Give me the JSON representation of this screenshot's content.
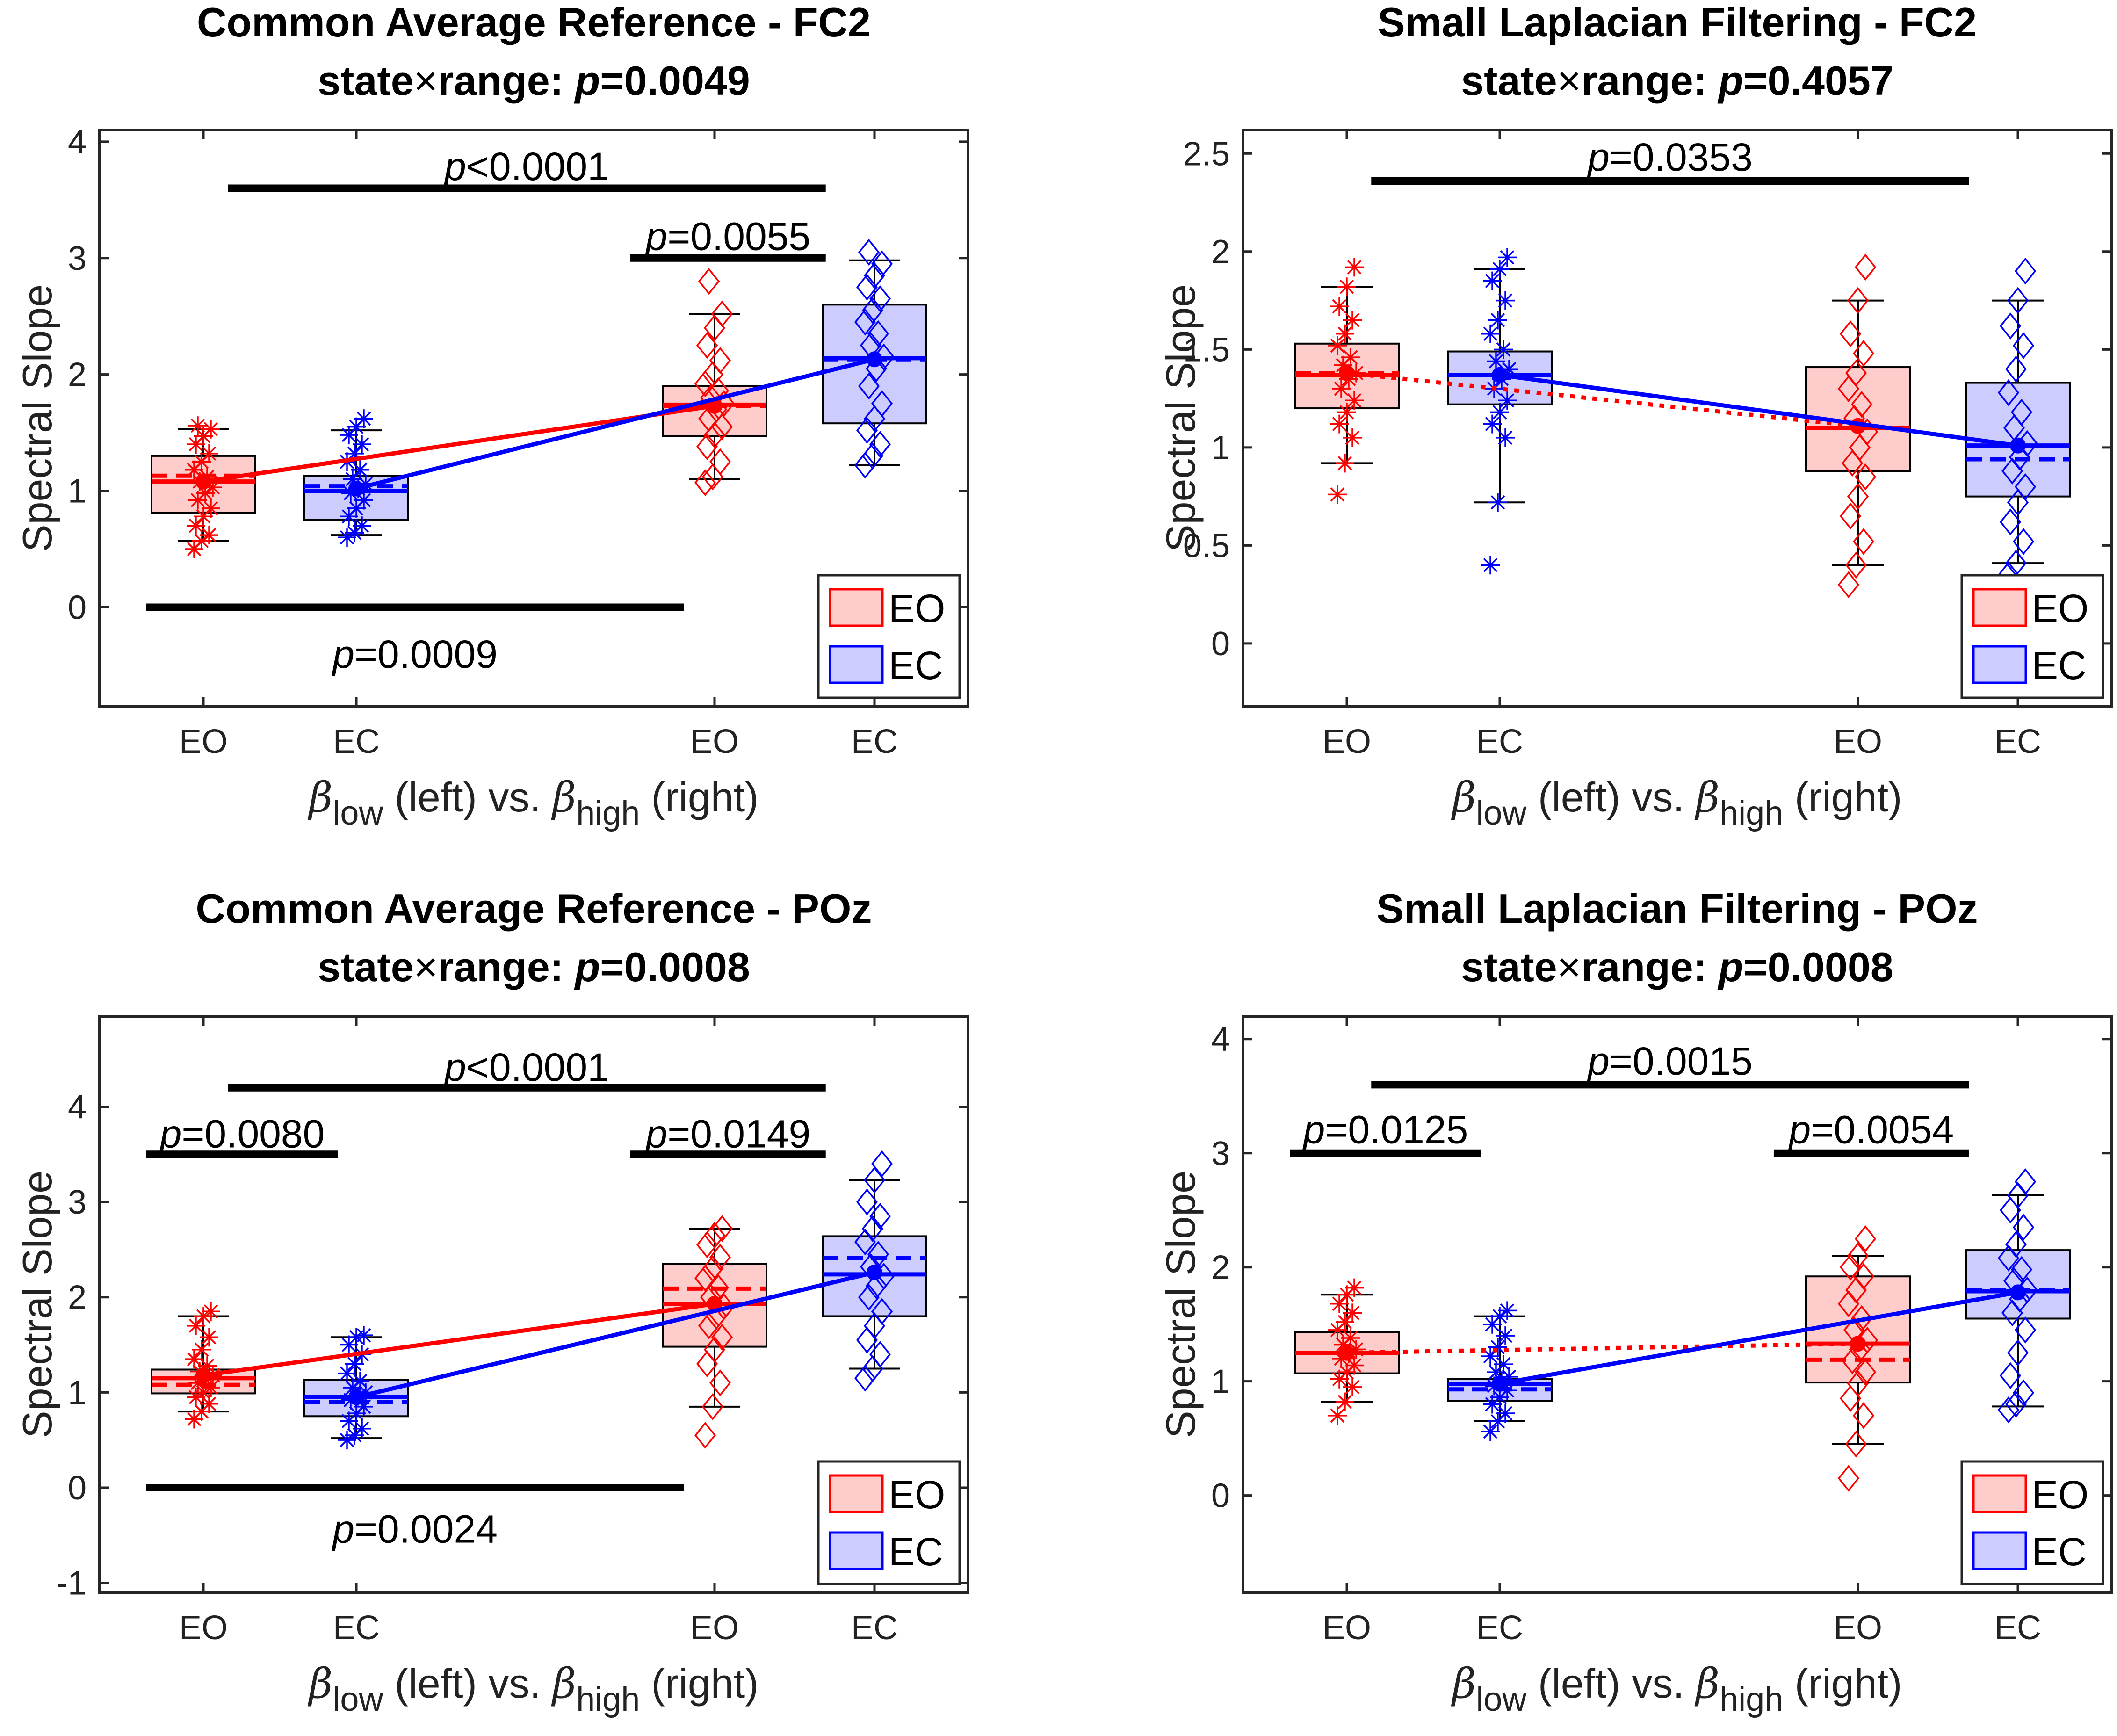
{
  "colors": {
    "EO": "#ff0000",
    "EC": "#0000ff",
    "EO_fill": "#ffcccc",
    "EC_fill": "#ccccff"
  },
  "common": {
    "ylabel": "Spectral Slope",
    "xlabel": {
      "sym1": "β",
      "sub1": "low",
      "mid": " (left) vs. ",
      "sym2": "β",
      "sub2": "high",
      "end": " (right)"
    },
    "categories": [
      "EO",
      "EC",
      "EO",
      "EC"
    ],
    "legend": [
      "EO",
      "EC"
    ]
  },
  "chart_data": [
    {
      "type": "box",
      "title": "Common Average Reference - FC2",
      "subtitle": {
        "prefix": "state",
        "times": "×",
        "mid": "range: ",
        "p": "p",
        "value": "=0.0049"
      },
      "ylim": [
        -0.85,
        4.1
      ],
      "yticks": [
        "0",
        "1",
        "2",
        "3",
        "4"
      ],
      "ytick_values": [
        0,
        1,
        2,
        3,
        4
      ],
      "boxes": [
        {
          "group": "EO",
          "range": "low",
          "q1": 0.81,
          "median": 1.08,
          "q3": 1.3,
          "wlo": 0.57,
          "whi": 1.53,
          "mean": 1.08,
          "trim": 1.13,
          "points": [
            0.5,
            0.57,
            0.62,
            0.7,
            0.78,
            0.85,
            0.92,
            0.98,
            1.03,
            1.08,
            1.12,
            1.18,
            1.25,
            1.32,
            1.4,
            1.47,
            1.53,
            1.56
          ]
        },
        {
          "group": "EC",
          "range": "low",
          "q1": 0.75,
          "median": 1.0,
          "q3": 1.13,
          "wlo": 0.62,
          "whi": 1.52,
          "mean": 1.02,
          "trim": 1.04,
          "points": [
            0.6,
            0.64,
            0.7,
            0.78,
            0.85,
            0.92,
            0.98,
            1.02,
            1.06,
            1.1,
            1.18,
            1.25,
            1.32,
            1.4,
            1.48,
            1.55,
            1.62
          ]
        },
        {
          "group": "EO",
          "range": "high",
          "q1": 1.47,
          "median": 1.74,
          "q3": 1.9,
          "wlo": 1.1,
          "whi": 2.52,
          "mean": 1.73,
          "trim": 1.73,
          "points": [
            1.07,
            1.12,
            1.25,
            1.38,
            1.48,
            1.55,
            1.62,
            1.7,
            1.75,
            1.8,
            1.86,
            1.92,
            2.0,
            2.12,
            2.25,
            2.4,
            2.52,
            2.8
          ]
        },
        {
          "group": "EC",
          "range": "high",
          "q1": 1.58,
          "median": 2.14,
          "q3": 2.6,
          "wlo": 1.22,
          "whi": 2.98,
          "mean": 2.13,
          "trim": 2.13,
          "points": [
            1.22,
            1.3,
            1.4,
            1.52,
            1.62,
            1.75,
            1.9,
            2.05,
            2.15,
            2.25,
            2.35,
            2.45,
            2.55,
            2.65,
            2.75,
            2.85,
            2.95,
            3.05
          ]
        }
      ],
      "trend_lines": [
        {
          "group": "EO",
          "from": 1.08,
          "to": 1.73,
          "style": "solid"
        },
        {
          "group": "EC",
          "from": 1.02,
          "to": 2.13,
          "style": "solid"
        }
      ],
      "annotations": [
        {
          "y": 3.6,
          "x_from": 0.67,
          "x_to": 4.25,
          "label_prefix": "p",
          "label": "<0.0001",
          "label_y": 3.75,
          "position": "above"
        },
        {
          "y": 3.0,
          "x_from": 3.08,
          "x_to": 4.25,
          "label_prefix": "p",
          "label": "=0.0055",
          "label_y": 3.15,
          "position": "above"
        },
        {
          "y": 0.0,
          "x_from": 0.08,
          "x_to": 3.4,
          "label_prefix": "p",
          "label": "=0.0009",
          "label_y": -0.4,
          "position": "below"
        }
      ],
      "legend_placement": "bottom-right"
    },
    {
      "type": "box",
      "title": "Small Laplacian Filtering - FC2",
      "subtitle": {
        "prefix": "state",
        "times": "×",
        "mid": "range: ",
        "p": "p",
        "value": "=0.4057"
      },
      "ylim": [
        -0.32,
        2.62
      ],
      "yticks": [
        "0",
        "0.5",
        "1",
        "1.5",
        "2",
        "2.5"
      ],
      "ytick_values": [
        0,
        0.5,
        1,
        1.5,
        2,
        2.5
      ],
      "boxes": [
        {
          "group": "EO",
          "range": "low",
          "q1": 1.2,
          "median": 1.37,
          "q3": 1.53,
          "wlo": 0.92,
          "whi": 1.82,
          "mean": 1.38,
          "trim": 1.38,
          "points": [
            0.76,
            0.92,
            1.05,
            1.12,
            1.18,
            1.24,
            1.3,
            1.35,
            1.38,
            1.42,
            1.46,
            1.52,
            1.58,
            1.65,
            1.72,
            1.82,
            1.92
          ]
        },
        {
          "group": "EC",
          "range": "low",
          "q1": 1.22,
          "median": 1.37,
          "q3": 1.49,
          "wlo": 0.72,
          "whi": 1.91,
          "mean": 1.37,
          "trim": 1.37,
          "points": [
            0.4,
            0.72,
            1.05,
            1.12,
            1.18,
            1.24,
            1.3,
            1.35,
            1.4,
            1.44,
            1.5,
            1.58,
            1.65,
            1.75,
            1.85,
            1.91,
            1.97
          ]
        },
        {
          "group": "EO",
          "range": "high",
          "q1": 0.88,
          "median": 1.1,
          "q3": 1.41,
          "wlo": 0.4,
          "whi": 1.75,
          "mean": 1.11,
          "trim": 1.1,
          "points": [
            0.3,
            0.4,
            0.52,
            0.65,
            0.75,
            0.85,
            0.92,
            1.0,
            1.08,
            1.15,
            1.22,
            1.3,
            1.38,
            1.48,
            1.58,
            1.75,
            1.92
          ]
        },
        {
          "group": "EC",
          "range": "high",
          "q1": 0.75,
          "median": 1.01,
          "q3": 1.33,
          "wlo": 0.41,
          "whi": 1.75,
          "mean": 1.01,
          "trim": 0.94,
          "points": [
            0.35,
            0.41,
            0.52,
            0.62,
            0.72,
            0.8,
            0.88,
            0.95,
            1.02,
            1.1,
            1.18,
            1.28,
            1.4,
            1.52,
            1.62,
            1.75,
            1.9
          ]
        }
      ],
      "trend_lines": [
        {
          "group": "EO",
          "from": 1.38,
          "to": 1.11,
          "style": "dotted"
        },
        {
          "group": "EC",
          "from": 1.37,
          "to": 1.01,
          "style": "solid"
        }
      ],
      "annotations": [
        {
          "y": 2.36,
          "x_from": 0.67,
          "x_to": 4.25,
          "label_prefix": "p",
          "label": "=0.0353",
          "label_y": 2.46,
          "position": "above"
        }
      ],
      "legend_placement": "bottom-right"
    },
    {
      "type": "box",
      "title": "Common Average Reference - POz",
      "subtitle": {
        "prefix": "state",
        "times": "×",
        "mid": "range: ",
        "p": "p",
        "value": "=0.0008"
      },
      "ylim": [
        -1.1,
        4.95
      ],
      "yticks": [
        "-1",
        "0",
        "1",
        "2",
        "3",
        "4"
      ],
      "ytick_values": [
        -1,
        0,
        1,
        2,
        3,
        4
      ],
      "boxes": [
        {
          "group": "EO",
          "range": "low",
          "q1": 0.99,
          "median": 1.15,
          "q3": 1.24,
          "wlo": 0.8,
          "whi": 1.8,
          "mean": 1.18,
          "trim": 1.08,
          "points": [
            0.72,
            0.8,
            0.88,
            0.95,
            1.0,
            1.05,
            1.1,
            1.14,
            1.18,
            1.22,
            1.28,
            1.35,
            1.45,
            1.58,
            1.7,
            1.8,
            1.85
          ]
        },
        {
          "group": "EC",
          "range": "low",
          "q1": 0.75,
          "median": 0.95,
          "q3": 1.13,
          "wlo": 0.52,
          "whi": 1.58,
          "mean": 0.95,
          "trim": 0.9,
          "points": [
            0.5,
            0.55,
            0.62,
            0.7,
            0.78,
            0.85,
            0.92,
            0.96,
            1.0,
            1.05,
            1.12,
            1.2,
            1.3,
            1.4,
            1.5,
            1.58,
            1.6
          ]
        },
        {
          "group": "EO",
          "range": "high",
          "q1": 1.48,
          "median": 1.93,
          "q3": 2.35,
          "wlo": 0.85,
          "whi": 2.72,
          "mean": 1.93,
          "trim": 2.09,
          "points": [
            0.55,
            0.85,
            1.1,
            1.3,
            1.45,
            1.58,
            1.7,
            1.8,
            1.9,
            2.0,
            2.1,
            2.2,
            2.3,
            2.42,
            2.55,
            2.65,
            2.72
          ]
        },
        {
          "group": "EC",
          "range": "high",
          "q1": 1.8,
          "median": 2.24,
          "q3": 2.64,
          "wlo": 1.25,
          "whi": 3.23,
          "mean": 2.26,
          "trim": 2.41,
          "points": [
            1.15,
            1.25,
            1.4,
            1.55,
            1.7,
            1.85,
            2.0,
            2.12,
            2.22,
            2.32,
            2.45,
            2.58,
            2.72,
            2.85,
            3.0,
            3.23,
            3.4
          ]
        }
      ],
      "trend_lines": [
        {
          "group": "EO",
          "from": 1.18,
          "to": 1.93,
          "style": "solid"
        },
        {
          "group": "EC",
          "from": 0.95,
          "to": 2.26,
          "style": "solid"
        }
      ],
      "annotations": [
        {
          "y": 4.2,
          "x_from": 0.67,
          "x_to": 4.25,
          "label_prefix": "p",
          "label": "<0.0001",
          "label_y": 4.37,
          "position": "above"
        },
        {
          "y": 3.5,
          "x_from": 0.08,
          "x_to": 1.33,
          "label_prefix": "p",
          "label": "=0.0080",
          "label_y": 3.67,
          "position": "above"
        },
        {
          "y": 3.5,
          "x_from": 3.08,
          "x_to": 4.25,
          "label_prefix": "p",
          "label": "=0.0149",
          "label_y": 3.67,
          "position": "above"
        },
        {
          "y": 0.0,
          "x_from": 0.08,
          "x_to": 3.4,
          "label_prefix": "p",
          "label": "=0.0024",
          "label_y": -0.43,
          "position": "below"
        }
      ],
      "legend_placement": "bottom-right"
    },
    {
      "type": "box",
      "title": "Small Laplacian Filtering - POz",
      "subtitle": {
        "prefix": "state",
        "times": "×",
        "mid": "range: ",
        "p": "p",
        "value": "=0.0008"
      },
      "ylim": [
        -0.85,
        4.2
      ],
      "yticks": [
        "0",
        "1",
        "2",
        "3",
        "4"
      ],
      "ytick_values": [
        0,
        1,
        2,
        3,
        4
      ],
      "boxes": [
        {
          "group": "EO",
          "range": "low",
          "q1": 1.07,
          "median": 1.25,
          "q3": 1.43,
          "wlo": 0.82,
          "whi": 1.76,
          "mean": 1.25,
          "trim": 1.25,
          "points": [
            0.7,
            0.82,
            0.95,
            1.02,
            1.08,
            1.14,
            1.2,
            1.24,
            1.28,
            1.32,
            1.38,
            1.45,
            1.52,
            1.6,
            1.68,
            1.76,
            1.82
          ]
        },
        {
          "group": "EC",
          "range": "low",
          "q1": 0.83,
          "median": 0.98,
          "q3": 1.02,
          "wlo": 0.65,
          "whi": 1.57,
          "mean": 0.98,
          "trim": 0.93,
          "points": [
            0.56,
            0.65,
            0.72,
            0.8,
            0.86,
            0.92,
            0.96,
            1.0,
            1.04,
            1.08,
            1.15,
            1.22,
            1.3,
            1.4,
            1.5,
            1.57,
            1.62
          ]
        },
        {
          "group": "EO",
          "range": "high",
          "q1": 0.99,
          "median": 1.33,
          "q3": 1.92,
          "wlo": 0.45,
          "whi": 2.1,
          "mean": 1.33,
          "trim": 1.19,
          "points": [
            0.15,
            0.45,
            0.7,
            0.85,
            0.98,
            1.08,
            1.18,
            1.28,
            1.36,
            1.45,
            1.55,
            1.68,
            1.8,
            1.92,
            2.0,
            2.1,
            2.25
          ]
        },
        {
          "group": "EC",
          "range": "high",
          "q1": 1.55,
          "median": 1.79,
          "q3": 2.15,
          "wlo": 0.78,
          "whi": 2.63,
          "mean": 1.78,
          "trim": 1.8,
          "points": [
            0.75,
            0.8,
            0.9,
            1.05,
            1.25,
            1.45,
            1.6,
            1.72,
            1.8,
            1.88,
            1.98,
            2.08,
            2.2,
            2.35,
            2.5,
            2.63,
            2.75
          ]
        }
      ],
      "trend_lines": [
        {
          "group": "EO",
          "from": 1.25,
          "to": 1.33,
          "style": "dotted"
        },
        {
          "group": "EC",
          "from": 0.98,
          "to": 1.78,
          "style": "solid"
        }
      ],
      "annotations": [
        {
          "y": 3.6,
          "x_from": 0.67,
          "x_to": 4.25,
          "label_prefix": "p",
          "label": "=0.0015",
          "label_y": 3.77,
          "position": "above"
        },
        {
          "y": 3.0,
          "x_from": 0.08,
          "x_to": 1.33,
          "label_prefix": "p",
          "label": "=0.0125",
          "label_y": 3.17,
          "position": "above"
        },
        {
          "y": 3.0,
          "x_from": 3.08,
          "x_to": 4.25,
          "label_prefix": "p",
          "label": "=0.0054",
          "label_y": 3.17,
          "position": "above"
        }
      ],
      "legend_placement": "bottom-right"
    }
  ]
}
